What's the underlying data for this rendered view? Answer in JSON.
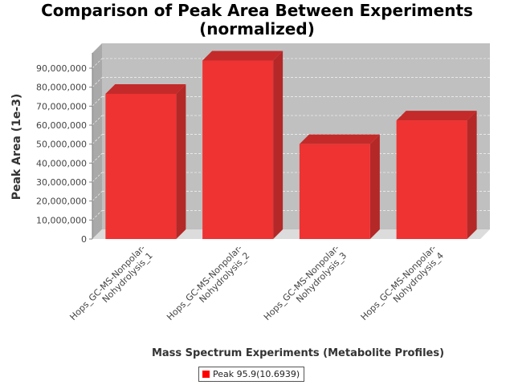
{
  "chart_data": {
    "type": "bar",
    "title_line1": "Comparison of Peak Area Between Experiments",
    "title_line2": "(normalized)",
    "xlabel": "Mass Spectrum Experiments (Metabolite Profiles)",
    "ylabel": "Peak Area (1e-3)",
    "categories": [
      [
        "Hops_GC-MS-Nonpolar-",
        "Nohydrolysis_1"
      ],
      [
        "Hops_GC-MS-Nonpolar-",
        "Nohydrolysis_2"
      ],
      [
        "Hops_GC-MS-Nonpolar-",
        "Nohydrolysis_3"
      ],
      [
        "Hops_GC-MS-Nonpolar-",
        "Nohydrolysis_4"
      ]
    ],
    "series": [
      {
        "name": "Peak 95.9(10.6939)",
        "values": [
          76500000,
          94000000,
          50000000,
          62500000
        ]
      }
    ],
    "ylim": [
      0,
      95000000
    ],
    "yticks": [
      0,
      10000000,
      20000000,
      30000000,
      40000000,
      50000000,
      60000000,
      70000000,
      80000000,
      90000000
    ],
    "ytick_labels": [
      "0",
      "10,000,000",
      "20,000,000",
      "30,000,000",
      "40,000,000",
      "50,000,000",
      "60,000,000",
      "70,000,000",
      "80,000,000",
      "90,000,000"
    ],
    "bar_color": "#ff0000",
    "plot_background": "#c0c0c0",
    "grid": true,
    "legend_position": "bottom",
    "style": "3d-bar"
  }
}
